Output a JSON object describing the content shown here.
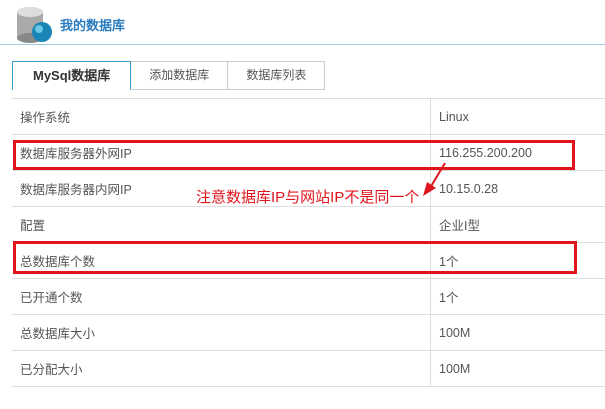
{
  "header": {
    "title": "我的数据库",
    "icon": "database-globe-icon"
  },
  "tabs": [
    {
      "label": "MySql数据库",
      "active": true
    },
    {
      "label": "添加数据库"
    },
    {
      "label": "数据库列表"
    }
  ],
  "rows": [
    {
      "label": "操作系统",
      "value": "Linux"
    },
    {
      "label": "数据库服务器外网IP",
      "value": "116.255.200.200"
    },
    {
      "label": "数据库服务器内网IP",
      "value": "10.15.0.28"
    },
    {
      "label": "配置",
      "value": "企业I型"
    },
    {
      "label": "总数据库个数",
      "value": "1个"
    },
    {
      "label": "已开通个数",
      "value": "1个"
    },
    {
      "label": "总数据库大小",
      "value": "100M"
    },
    {
      "label": "已分配大小",
      "value": "100M"
    }
  ],
  "annotation": {
    "text": "注意数据库IP与网站IP不是同一个",
    "color": "#e0141c"
  }
}
